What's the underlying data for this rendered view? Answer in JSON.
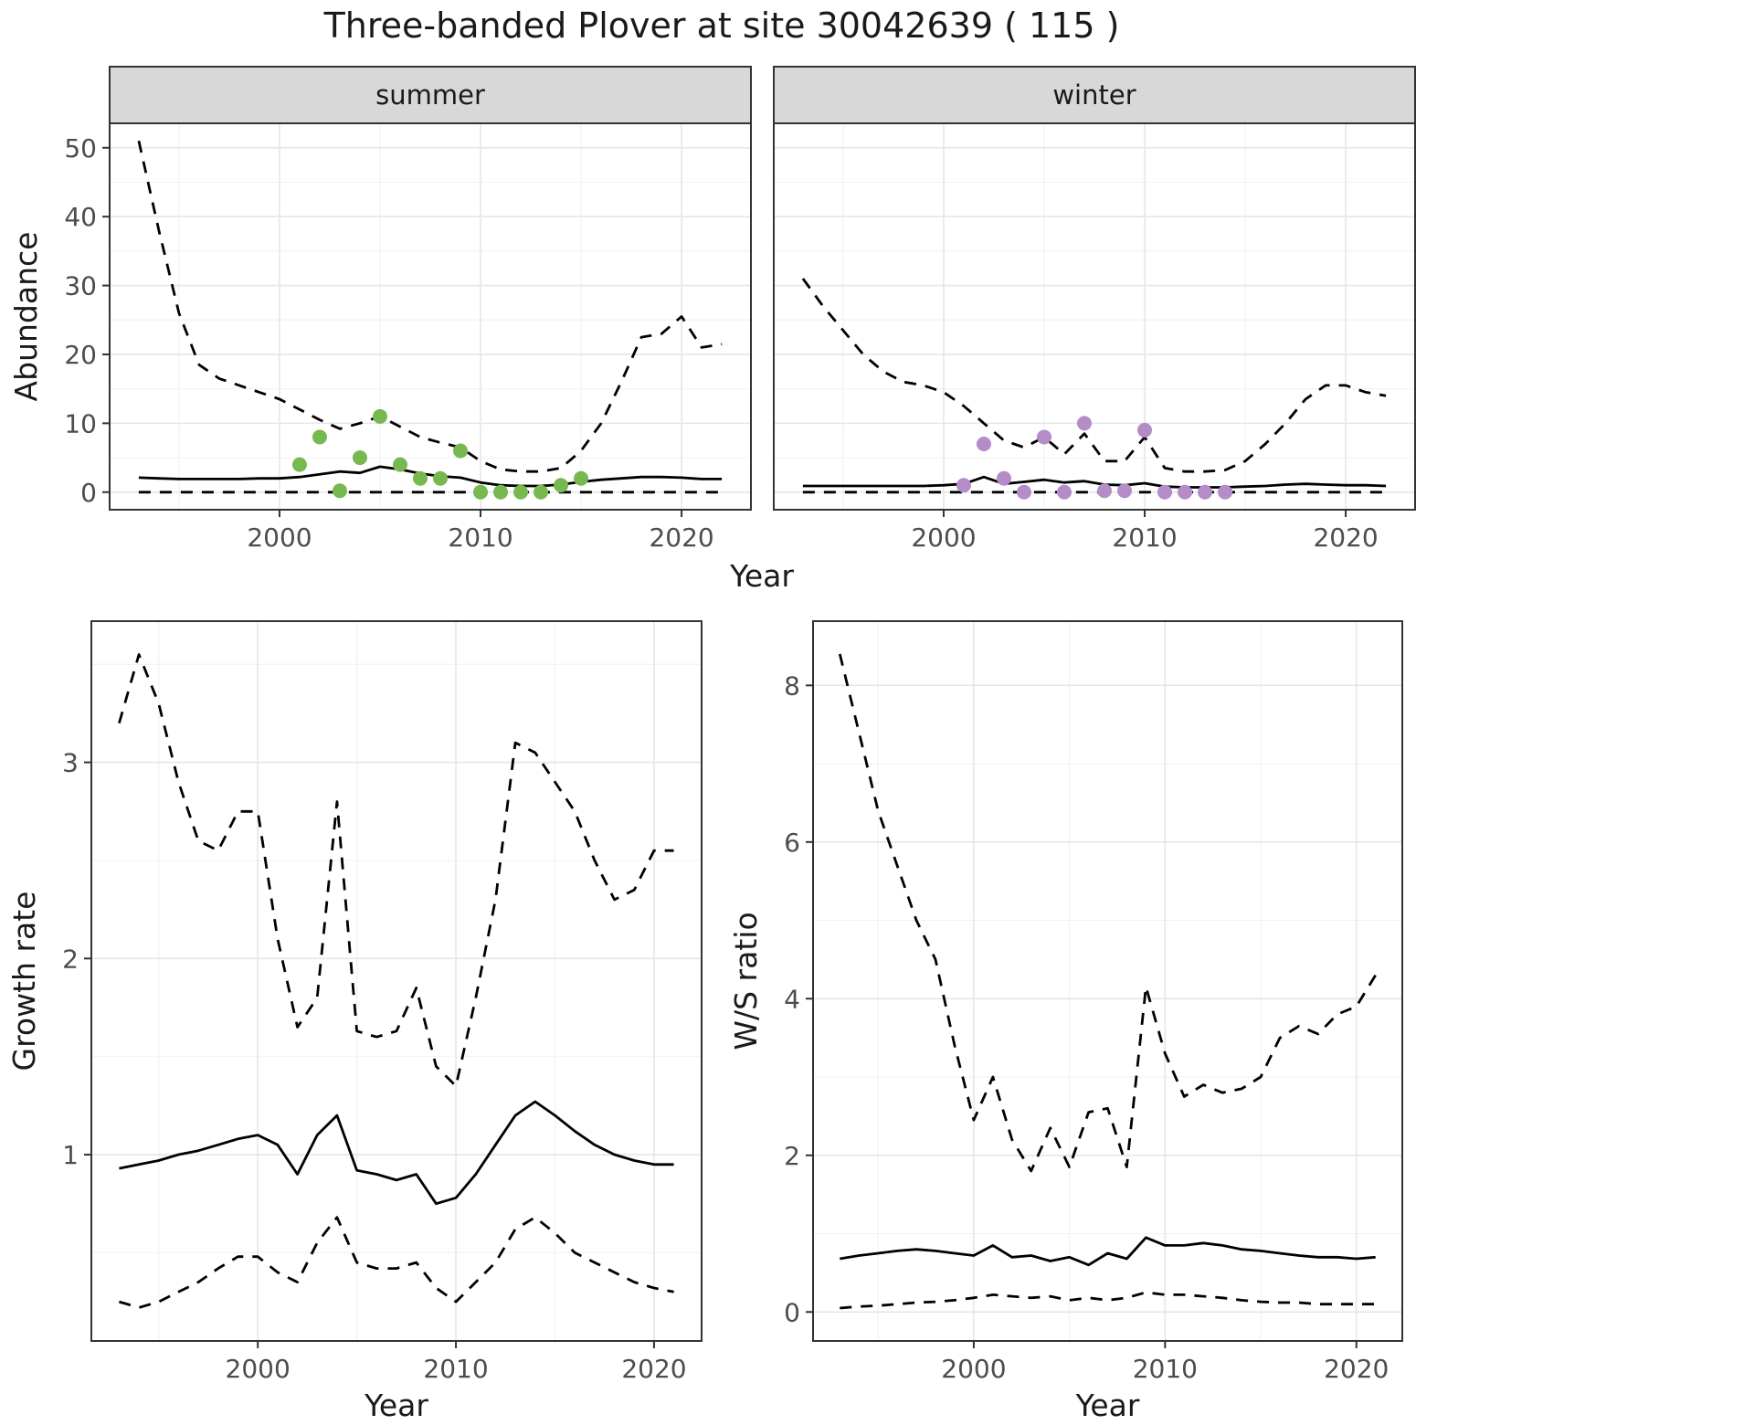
{
  "title": "Three-banded Plover at site 30042639 ( 115 )",
  "theme": {
    "background": "#ffffff",
    "panel_background": "#ffffff",
    "panel_border": "#333333",
    "axis_color": "#333333",
    "grid_major": "#e6e6e6",
    "grid_minor": "#f2f2f2",
    "strip_background": "#d8d8d8",
    "strip_border": "#333333",
    "line_color": "#000000",
    "text_color": "#1a1a1a",
    "tick_label_color": "#4d4d4d",
    "summer_point_color": "#77b84f",
    "winter_point_color": "#b48cc8"
  },
  "chart_data": [
    {
      "id": "abundance",
      "type": "line",
      "ylabel": "Abundance",
      "xlabel": "Year",
      "yticks": [
        0,
        10,
        20,
        30,
        40,
        50
      ],
      "xticks": [
        2000,
        2010,
        2020
      ],
      "ylim": [
        -2.55,
        53.55
      ],
      "xlim": [
        1991.55,
        2023.45
      ],
      "grid": true,
      "legend": "none",
      "line_styles": {
        "median": "solid",
        "upper_ci": "dashed",
        "lower_ci": "dashed"
      },
      "facets": [
        {
          "label": "summer",
          "years": [
            1993,
            1994,
            1995,
            1996,
            1997,
            1998,
            1999,
            2000,
            2001,
            2002,
            2003,
            2004,
            2005,
            2006,
            2007,
            2008,
            2009,
            2010,
            2011,
            2012,
            2013,
            2014,
            2015,
            2016,
            2017,
            2018,
            2019,
            2020,
            2021,
            2022
          ],
          "upper_ci": [
            51,
            38,
            26,
            18.5,
            16.5,
            15.5,
            14.5,
            13.5,
            12,
            10.5,
            9.2,
            10,
            11,
            9.5,
            8,
            7.2,
            6.5,
            4.5,
            3.3,
            3,
            3,
            3.5,
            6,
            10,
            16,
            22.5,
            23,
            25.5,
            21,
            21.5
          ],
          "median": [
            2.1,
            2.0,
            1.9,
            1.9,
            1.9,
            1.9,
            2.0,
            2.0,
            2.2,
            2.6,
            3.0,
            2.8,
            3.7,
            3.3,
            2.7,
            2.3,
            2.1,
            1.4,
            1.0,
            0.9,
            0.9,
            1.1,
            1.5,
            1.8,
            2.0,
            2.2,
            2.2,
            2.1,
            1.9,
            1.9
          ],
          "lower_ci": [
            0,
            0,
            0,
            0,
            0,
            0,
            0,
            0,
            0,
            0,
            0,
            0,
            0,
            0,
            0,
            0,
            0,
            0,
            0,
            0,
            0,
            0,
            0,
            0,
            0,
            0,
            0,
            0,
            0,
            0
          ],
          "obs_points": {
            "color": "#77b84f",
            "years": [
              2001,
              2002,
              2003,
              2004,
              2005,
              2006,
              2007,
              2008,
              2009,
              2010,
              2011,
              2012,
              2013,
              2014,
              2015
            ],
            "values": [
              4,
              8,
              0.2,
              5,
              11,
              4,
              2,
              2,
              6,
              0,
              0,
              0,
              0,
              1,
              2
            ]
          }
        },
        {
          "label": "winter",
          "years": [
            1993,
            1994,
            1995,
            1996,
            1997,
            1998,
            1999,
            2000,
            2001,
            2002,
            2003,
            2004,
            2005,
            2006,
            2007,
            2008,
            2009,
            2010,
            2011,
            2012,
            2013,
            2014,
            2015,
            2016,
            2017,
            2018,
            2019,
            2020,
            2021,
            2022
          ],
          "upper_ci": [
            31,
            27,
            23.5,
            20,
            17.5,
            16,
            15.5,
            14.5,
            12.5,
            10,
            7.5,
            6.5,
            8,
            5.5,
            8.5,
            4.5,
            4.5,
            8,
            3.5,
            3,
            3,
            3.2,
            4.5,
            7,
            10,
            13.5,
            15.5,
            15.5,
            14.5,
            14
          ],
          "median": [
            0.9,
            0.9,
            0.9,
            0.9,
            0.9,
            0.9,
            0.9,
            1.0,
            1.2,
            2.2,
            1.2,
            1.5,
            1.8,
            1.4,
            1.6,
            1.1,
            1.0,
            1.3,
            0.8,
            0.7,
            0.7,
            0.7,
            0.8,
            0.9,
            1.1,
            1.2,
            1.1,
            1.0,
            1.0,
            0.9
          ],
          "lower_ci": [
            0,
            0,
            0,
            0,
            0,
            0,
            0,
            0,
            0,
            0,
            0,
            0,
            0,
            0,
            0,
            0,
            0,
            0,
            0,
            0,
            0,
            0,
            0,
            0,
            0,
            0,
            0,
            0,
            0,
            0
          ],
          "obs_points": {
            "color": "#b48cc8",
            "years": [
              2001,
              2002,
              2003,
              2004,
              2005,
              2006,
              2007,
              2008,
              2009,
              2010,
              2011,
              2012,
              2013,
              2014
            ],
            "values": [
              1,
              7,
              2,
              0,
              8,
              0,
              10,
              0.2,
              0.2,
              9,
              0,
              0,
              0,
              0
            ]
          }
        }
      ]
    },
    {
      "id": "growth-rate",
      "type": "line",
      "ylabel": "Growth rate",
      "xlabel": "Year",
      "yticks": [
        1,
        2,
        3
      ],
      "xticks": [
        2000,
        2010,
        2020
      ],
      "ylim": [
        0.05,
        3.72
      ],
      "xlim": [
        1991.6,
        2022.4
      ],
      "grid": true,
      "legend": "none",
      "line_styles": {
        "median": "solid",
        "upper_ci": "dashed",
        "lower_ci": "dashed"
      },
      "years": [
        1993,
        1994,
        1995,
        1996,
        1997,
        1998,
        1999,
        2000,
        2001,
        2002,
        2003,
        2004,
        2005,
        2006,
        2007,
        2008,
        2009,
        2010,
        2011,
        2012,
        2013,
        2014,
        2015,
        2016,
        2017,
        2018,
        2019,
        2020,
        2021
      ],
      "upper_ci": [
        3.2,
        3.55,
        3.3,
        2.9,
        2.6,
        2.55,
        2.75,
        2.75,
        2.1,
        1.65,
        1.8,
        2.8,
        1.63,
        1.6,
        1.63,
        1.85,
        1.45,
        1.35,
        1.8,
        2.3,
        3.1,
        3.05,
        2.9,
        2.75,
        2.5,
        2.3,
        2.35,
        2.55,
        2.55
      ],
      "median": [
        0.93,
        0.95,
        0.97,
        1.0,
        1.02,
        1.05,
        1.08,
        1.1,
        1.05,
        0.9,
        1.1,
        1.2,
        0.92,
        0.9,
        0.87,
        0.9,
        0.75,
        0.78,
        0.9,
        1.05,
        1.2,
        1.27,
        1.2,
        1.12,
        1.05,
        1.0,
        0.97,
        0.95,
        0.95
      ],
      "lower_ci": [
        0.25,
        0.22,
        0.25,
        0.3,
        0.35,
        0.42,
        0.48,
        0.48,
        0.4,
        0.35,
        0.55,
        0.68,
        0.45,
        0.42,
        0.42,
        0.45,
        0.32,
        0.25,
        0.35,
        0.45,
        0.62,
        0.68,
        0.6,
        0.5,
        0.45,
        0.4,
        0.35,
        0.32,
        0.3
      ]
    },
    {
      "id": "ws-ratio",
      "type": "line",
      "ylabel": "W/S ratio",
      "xlabel": "Year",
      "yticks": [
        0,
        2,
        4,
        6,
        8
      ],
      "xticks": [
        2000,
        2010,
        2020
      ],
      "ylim": [
        -0.37,
        8.82
      ],
      "xlim": [
        1991.6,
        2022.4
      ],
      "grid": true,
      "legend": "none",
      "line_styles": {
        "median": "solid",
        "upper_ci": "dashed",
        "lower_ci": "dashed"
      },
      "years": [
        1993,
        1994,
        1995,
        1996,
        1997,
        1998,
        1999,
        2000,
        2001,
        2002,
        2003,
        2004,
        2005,
        2006,
        2007,
        2008,
        2009,
        2010,
        2011,
        2012,
        2013,
        2014,
        2015,
        2016,
        2017,
        2018,
        2019,
        2020,
        2021
      ],
      "upper_ci": [
        8.4,
        7.4,
        6.4,
        5.7,
        5.0,
        4.5,
        3.4,
        2.45,
        3.0,
        2.2,
        1.8,
        2.35,
        1.85,
        2.55,
        2.6,
        1.85,
        4.15,
        3.3,
        2.75,
        2.9,
        2.8,
        2.85,
        3.0,
        3.5,
        3.65,
        3.55,
        3.8,
        3.9,
        4.3
      ],
      "median": [
        0.68,
        0.72,
        0.75,
        0.78,
        0.8,
        0.78,
        0.75,
        0.72,
        0.85,
        0.7,
        0.72,
        0.65,
        0.7,
        0.6,
        0.75,
        0.68,
        0.95,
        0.85,
        0.85,
        0.88,
        0.85,
        0.8,
        0.78,
        0.75,
        0.72,
        0.7,
        0.7,
        0.68,
        0.7
      ],
      "lower_ci": [
        0.05,
        0.07,
        0.08,
        0.1,
        0.12,
        0.13,
        0.15,
        0.18,
        0.22,
        0.2,
        0.18,
        0.2,
        0.15,
        0.18,
        0.15,
        0.18,
        0.25,
        0.22,
        0.22,
        0.2,
        0.18,
        0.15,
        0.13,
        0.12,
        0.12,
        0.1,
        0.1,
        0.1,
        0.1
      ]
    }
  ]
}
